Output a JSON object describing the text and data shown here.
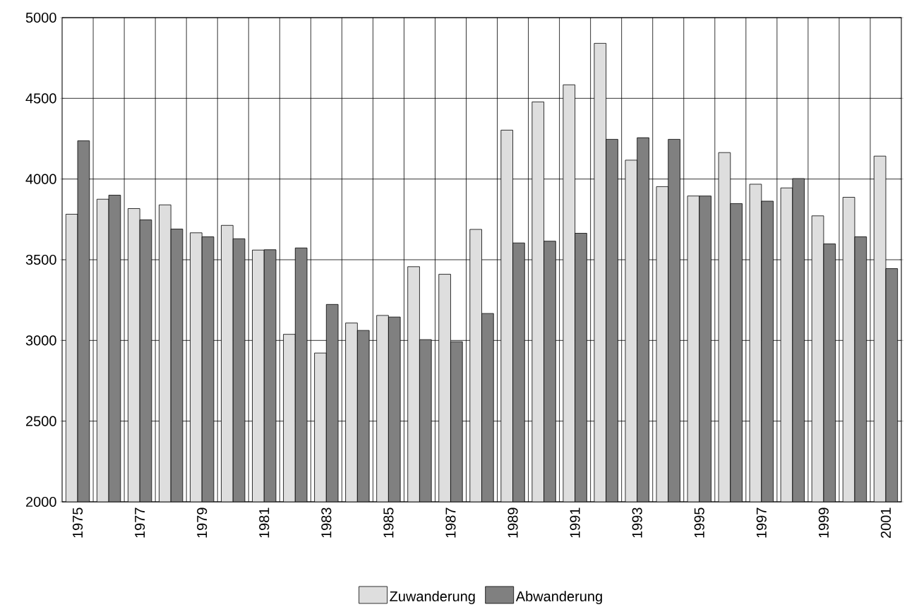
{
  "chart_data": {
    "type": "bar",
    "categories": [
      "1975",
      null,
      "1977",
      null,
      "1979",
      null,
      "1981",
      null,
      "1983",
      null,
      "1985",
      null,
      "1987",
      null,
      "1989",
      null,
      "1991",
      null,
      "1993",
      null,
      "1995",
      null,
      "1997",
      null,
      "1999",
      null,
      "2001"
    ],
    "series": [
      {
        "name": "Zuwanderung",
        "color": "#dedede",
        "values": [
          3782,
          3875,
          3817,
          3840,
          3667,
          3713,
          3560,
          3038,
          2922,
          3108,
          3155,
          3457,
          3410,
          3688,
          4303,
          4478,
          4584,
          4841,
          4117,
          3953,
          3895,
          4164,
          3968,
          3945,
          3772,
          3887,
          4142
        ]
      },
      {
        "name": "Abwanderung",
        "color": "#808080",
        "values": [
          4237,
          3900,
          3747,
          3690,
          3642,
          3630,
          3562,
          3573,
          3223,
          3062,
          3145,
          3005,
          2992,
          3167,
          3604,
          3615,
          3664,
          4246,
          4256,
          4246,
          3895,
          3848,
          3863,
          4003,
          3598,
          3642,
          3445
        ]
      }
    ],
    "ylim": [
      2000,
      5000
    ],
    "yticks": [
      2000,
      2500,
      3000,
      3500,
      4000,
      4500,
      5000
    ],
    "grid": true,
    "legend": "bottom"
  }
}
